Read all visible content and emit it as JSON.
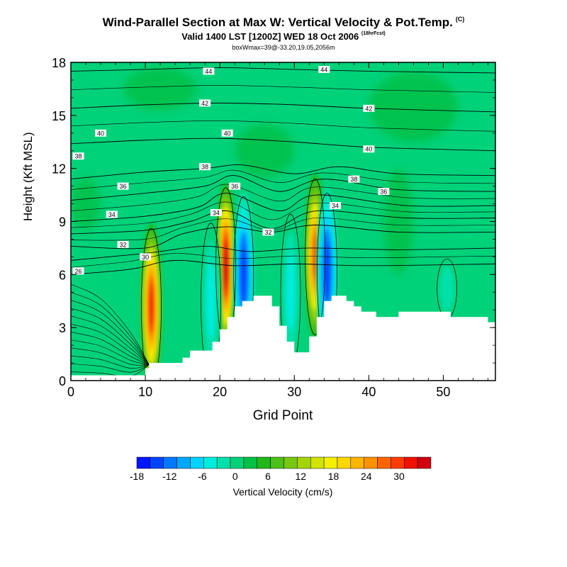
{
  "header": {
    "title": "Wind-Parallel Section at Max W: Vertical Velocity & Pot.Temp.",
    "copyright": "(C)",
    "valid": "Valid 1400 LST [1200Z] WED 18 Oct 2006",
    "forecast": "(18hrFcst)",
    "boxinfo": "boxWmax=39@-33.20,19.05,2056m"
  },
  "chart_data": {
    "type": "contour",
    "xlabel": "Grid Point",
    "ylabel": "Height (Kft MSL)",
    "xlim": [
      0,
      57
    ],
    "ylim": [
      0,
      18
    ],
    "xticks": [
      0,
      10,
      20,
      30,
      40,
      50
    ],
    "yticks": [
      0,
      3,
      6,
      9,
      12,
      15,
      18
    ],
    "terrain_profile_x": [
      0,
      9,
      10,
      10.5,
      14,
      15,
      16,
      18,
      19,
      20,
      21,
      22,
      23,
      24,
      24.5,
      26,
      27,
      28,
      29,
      30,
      31,
      32,
      33,
      34,
      35,
      36,
      37,
      38,
      39,
      40,
      41,
      42,
      44,
      45,
      50,
      51,
      55,
      56,
      57
    ],
    "terrain_profile_kft": [
      0.3,
      0.3,
      0.7,
      1.0,
      1.0,
      1.3,
      1.7,
      1.7,
      2.2,
      2.9,
      3.6,
      4.2,
      4.5,
      4.5,
      4.8,
      4.8,
      4.2,
      3.1,
      2.2,
      1.6,
      1.6,
      2.5,
      3.6,
      4.5,
      4.8,
      4.8,
      4.5,
      4.2,
      3.9,
      3.9,
      3.6,
      3.6,
      3.9,
      3.9,
      3.9,
      3.6,
      3.6,
      3.3,
      3.6
    ],
    "theta_contours": [
      {
        "label": "26",
        "x": [
          0,
          8,
          14,
          22,
          30,
          40,
          57
        ],
        "y": [
          6.0,
          6.3,
          6.8,
          6.5,
          6.6,
          6.5,
          6.6
        ]
      },
      {
        "label": "28",
        "x": [
          0,
          10,
          18,
          24,
          32,
          44,
          57
        ],
        "y": [
          6.8,
          7.2,
          7.6,
          7.3,
          7.5,
          7.4,
          7.5
        ]
      },
      {
        "label": "30",
        "x": [
          0,
          10,
          15,
          21,
          27,
          33,
          44,
          57
        ],
        "y": [
          7.6,
          7.5,
          8.3,
          8.7,
          8.4,
          8.8,
          8.4,
          8.4
        ]
      },
      {
        "label": "32",
        "x": [
          0,
          10,
          16,
          21,
          27,
          33,
          45,
          57
        ],
        "y": [
          8.3,
          8.5,
          9.0,
          9.6,
          8.6,
          9.6,
          9.2,
          9.2
        ]
      },
      {
        "label": "34",
        "x": [
          0,
          10,
          17,
          21,
          28,
          33,
          45,
          57
        ],
        "y": [
          9.0,
          9.3,
          9.8,
          10.6,
          9.6,
          10.5,
          9.9,
          9.9
        ]
      },
      {
        "label": "36",
        "x": [
          0,
          10,
          18,
          22,
          28,
          34,
          44,
          57
        ],
        "y": [
          10.2,
          10.6,
          11.0,
          11.6,
          10.7,
          11.4,
          10.8,
          10.7
        ]
      },
      {
        "label": "38",
        "x": [
          0,
          10,
          18,
          23,
          30,
          36,
          44,
          57
        ],
        "y": [
          11.4,
          11.8,
          12.0,
          12.2,
          11.7,
          12.1,
          11.7,
          11.6
        ]
      },
      {
        "label": "40",
        "x": [
          0,
          10,
          20,
          30,
          40,
          57
        ],
        "y": [
          13.4,
          13.6,
          13.7,
          13.5,
          13.2,
          13.0
        ]
      },
      {
        "label": "42",
        "x": [
          0,
          10,
          20,
          30,
          40,
          57
        ],
        "y": [
          15.4,
          15.6,
          15.7,
          15.6,
          15.4,
          15.2
        ]
      },
      {
        "label": "44",
        "x": [
          0,
          10,
          20,
          30,
          40,
          57
        ],
        "y": [
          17.5,
          17.6,
          17.7,
          17.6,
          17.5,
          17.4
        ]
      }
    ],
    "contour_labels": [
      {
        "text": "26",
        "x": 1,
        "y": 6.2
      },
      {
        "text": "30",
        "x": 10,
        "y": 7.0
      },
      {
        "text": "32",
        "x": 7,
        "y": 7.7
      },
      {
        "text": "34",
        "x": 5.5,
        "y": 9.4
      },
      {
        "text": "34",
        "x": 19.5,
        "y": 9.5
      },
      {
        "text": "32",
        "x": 26.5,
        "y": 8.4
      },
      {
        "text": "34",
        "x": 35.5,
        "y": 9.9
      },
      {
        "text": "36",
        "x": 7,
        "y": 11.0
      },
      {
        "text": "36",
        "x": 22,
        "y": 11.0
      },
      {
        "text": "38",
        "x": 1,
        "y": 12.7
      },
      {
        "text": "38",
        "x": 18,
        "y": 12.1
      },
      {
        "text": "36",
        "x": 42,
        "y": 10.7
      },
      {
        "text": "38",
        "x": 38,
        "y": 11.4
      },
      {
        "text": "40",
        "x": 4,
        "y": 14.0
      },
      {
        "text": "40",
        "x": 21,
        "y": 14.0
      },
      {
        "text": "40",
        "x": 40,
        "y": 13.1
      },
      {
        "text": "42",
        "x": 18,
        "y": 15.7
      },
      {
        "text": "42",
        "x": 40,
        "y": 15.4
      },
      {
        "text": "44",
        "x": 18.5,
        "y": 17.5
      },
      {
        "text": "44",
        "x": 34,
        "y": 17.6
      }
    ],
    "w_features_cm_s": [
      {
        "x": 10.8,
        "y": 4.2,
        "value": 30
      },
      {
        "x": 20.8,
        "y": 6.5,
        "value": 33
      },
      {
        "x": 23.2,
        "y": 6.0,
        "value": -15
      },
      {
        "x": 32.8,
        "y": 7.0,
        "value": 27
      },
      {
        "x": 34.4,
        "y": 6.2,
        "value": -15
      },
      {
        "x": 18.8,
        "y": 4.5,
        "value": -6
      },
      {
        "x": 29.5,
        "y": 5.0,
        "value": -6
      }
    ],
    "colorbar": {
      "label": "Vertical Velocity (cm/s)",
      "tick_labels": [
        "-18",
        "-12",
        "-6",
        "0",
        "6",
        "12",
        "18",
        "24",
        "30"
      ],
      "colors": [
        "#0016ff",
        "#0044ff",
        "#0077ff",
        "#00a8ff",
        "#00d2ff",
        "#00ecdc",
        "#00e0aa",
        "#00d27a",
        "#00c044",
        "#20b818",
        "#4cbf18",
        "#77c810",
        "#a4d408",
        "#d0e400",
        "#f4f000",
        "#ffd800",
        "#ffb400",
        "#ff9000",
        "#ff6400",
        "#ff3c00",
        "#f01000",
        "#cf0010"
      ]
    }
  }
}
